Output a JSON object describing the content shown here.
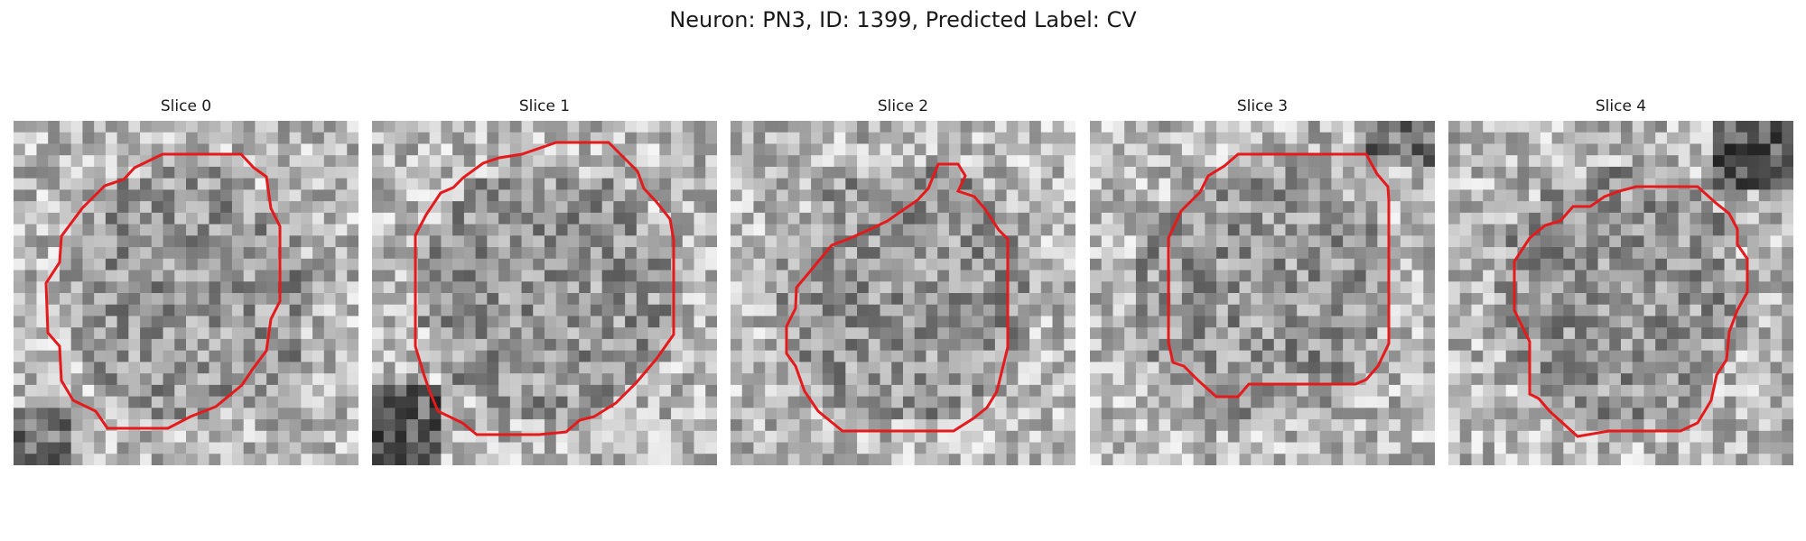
{
  "figure": {
    "title": "Neuron: PN3, ID: 1399, Predicted Label: CV"
  },
  "slices": [
    {
      "title": "Slice 0",
      "outline_color": "#e41a1c",
      "seed": 11
    },
    {
      "title": "Slice 1",
      "outline_color": "#e41a1c",
      "seed": 23
    },
    {
      "title": "Slice 2",
      "outline_color": "#e41a1c",
      "seed": 37
    },
    {
      "title": "Slice 3",
      "outline_color": "#e41a1c",
      "seed": 41
    },
    {
      "title": "Slice 4",
      "outline_color": "#e41a1c",
      "seed": 59
    }
  ]
}
